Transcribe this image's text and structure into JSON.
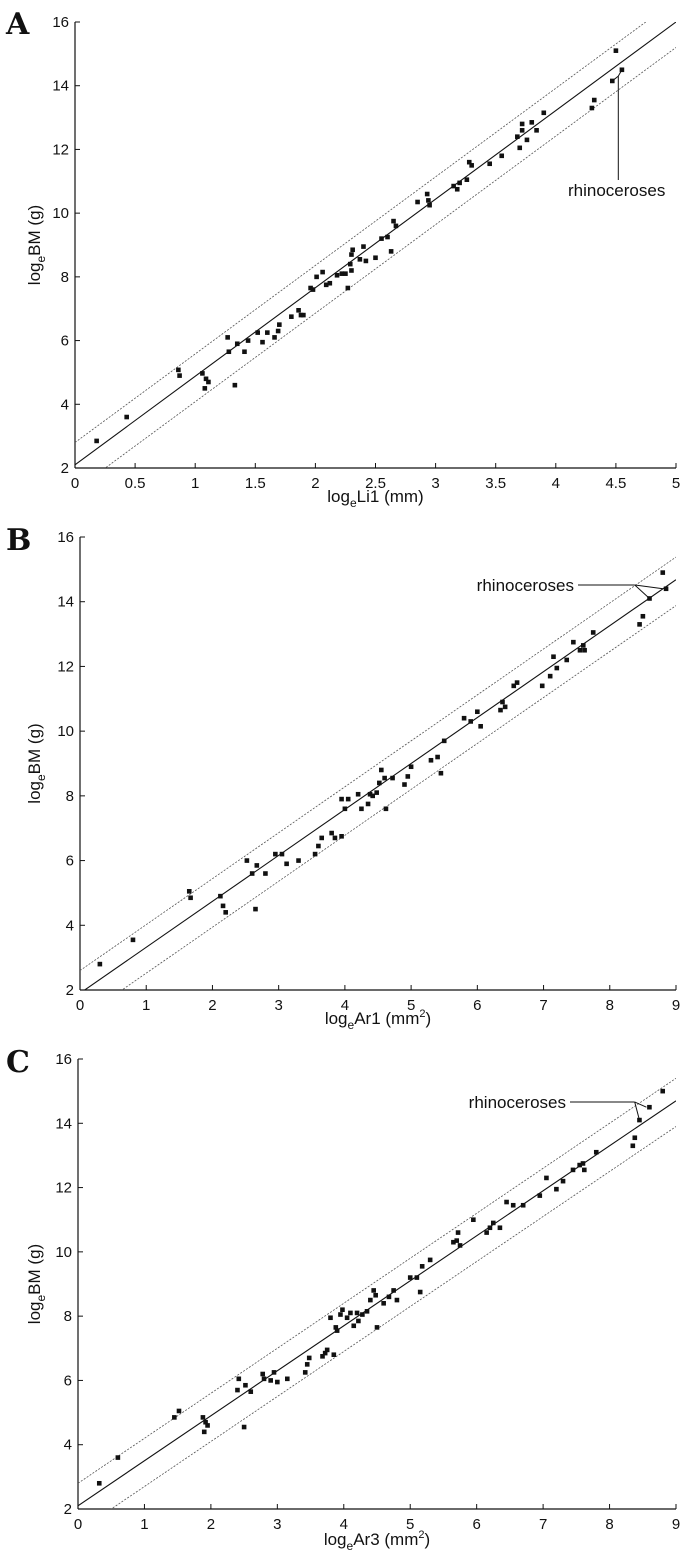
{
  "chart_data": [
    {
      "type": "scatter",
      "panel_label": "A",
      "xlabel": {
        "base": "log",
        "sub": "e",
        "rest": "Li1 (mm)",
        "sup": ""
      },
      "ylabel": {
        "base": "log",
        "sub": "e",
        "rest": "BM (g)"
      },
      "xlim": [
        0,
        5
      ],
      "ylim": [
        2,
        16
      ],
      "xticks": [
        "0",
        "0.5",
        "1",
        "1.5",
        "2",
        "2.5",
        "3",
        "3.5",
        "4",
        "4.5",
        "5"
      ],
      "yticks": [
        "2",
        "4",
        "6",
        "8",
        "10",
        "12",
        "14",
        "16"
      ],
      "annotation": "rhinoceroses",
      "rhino_points": [
        [
          4.5,
          15.1
        ],
        [
          4.55,
          14.5
        ],
        [
          4.47,
          14.15
        ]
      ],
      "fit_line": {
        "intercept": 2.1,
        "slope": 2.78
      },
      "upper_bound": {
        "intercept": 2.8,
        "slope": 2.78
      },
      "lower_bound": {
        "intercept": 1.3,
        "slope": 2.78
      },
      "points": [
        [
          0.18,
          2.85
        ],
        [
          0.43,
          3.6
        ],
        [
          0.86,
          5.08
        ],
        [
          0.87,
          4.9
        ],
        [
          1.06,
          4.97
        ],
        [
          1.08,
          4.5
        ],
        [
          1.09,
          4.8
        ],
        [
          1.11,
          4.7
        ],
        [
          1.27,
          6.1
        ],
        [
          1.28,
          5.65
        ],
        [
          1.33,
          4.6
        ],
        [
          1.35,
          5.9
        ],
        [
          1.41,
          5.65
        ],
        [
          1.44,
          6.0
        ],
        [
          1.52,
          6.25
        ],
        [
          1.56,
          5.95
        ],
        [
          1.6,
          6.25
        ],
        [
          1.66,
          6.1
        ],
        [
          1.69,
          6.3
        ],
        [
          1.7,
          6.5
        ],
        [
          1.8,
          6.75
        ],
        [
          1.86,
          6.95
        ],
        [
          1.88,
          6.8
        ],
        [
          1.9,
          6.8
        ],
        [
          1.96,
          7.65
        ],
        [
          1.98,
          7.6
        ],
        [
          2.01,
          8.0
        ],
        [
          2.06,
          8.15
        ],
        [
          2.09,
          7.75
        ],
        [
          2.12,
          7.8
        ],
        [
          2.18,
          8.05
        ],
        [
          2.22,
          8.1
        ],
        [
          2.25,
          8.1
        ],
        [
          2.27,
          7.65
        ],
        [
          2.29,
          8.4
        ],
        [
          2.3,
          8.7
        ],
        [
          2.31,
          8.85
        ],
        [
          2.3,
          8.2
        ],
        [
          2.37,
          8.55
        ],
        [
          2.4,
          8.95
        ],
        [
          2.42,
          8.5
        ],
        [
          2.5,
          8.6
        ],
        [
          2.55,
          9.2
        ],
        [
          2.6,
          9.25
        ],
        [
          2.63,
          8.8
        ],
        [
          2.65,
          9.75
        ],
        [
          2.67,
          9.6
        ],
        [
          2.85,
          10.35
        ],
        [
          2.93,
          10.6
        ],
        [
          2.94,
          10.4
        ],
        [
          2.95,
          10.25
        ],
        [
          3.15,
          10.85
        ],
        [
          3.18,
          10.75
        ],
        [
          3.2,
          10.95
        ],
        [
          3.26,
          11.05
        ],
        [
          3.28,
          11.6
        ],
        [
          3.3,
          11.5
        ],
        [
          3.45,
          11.55
        ],
        [
          3.55,
          11.8
        ],
        [
          3.68,
          12.4
        ],
        [
          3.7,
          12.05
        ],
        [
          3.72,
          12.8
        ],
        [
          3.72,
          12.6
        ],
        [
          3.76,
          12.3
        ],
        [
          3.8,
          12.85
        ],
        [
          3.84,
          12.6
        ],
        [
          3.9,
          13.15
        ],
        [
          4.3,
          13.3
        ],
        [
          4.32,
          13.55
        ]
      ]
    },
    {
      "type": "scatter",
      "panel_label": "B",
      "xlabel": {
        "base": "log",
        "sub": "e",
        "rest": "Ar1 (mm",
        "sup": "2",
        "close": ")"
      },
      "ylabel": {
        "base": "log",
        "sub": "e",
        "rest": "BM (g)"
      },
      "xlim": [
        0,
        9
      ],
      "ylim": [
        2,
        16
      ],
      "xticks": [
        "0",
        "1",
        "2",
        "3",
        "4",
        "5",
        "6",
        "7",
        "8",
        "9"
      ],
      "yticks": [
        "2",
        "4",
        "6",
        "8",
        "10",
        "12",
        "14",
        "16"
      ],
      "annotation": "rhinoceroses",
      "rhino_points": [
        [
          8.8,
          14.9
        ],
        [
          8.85,
          14.4
        ],
        [
          8.6,
          14.1
        ]
      ],
      "fit_line": {
        "intercept": 1.9,
        "slope": 1.42
      },
      "upper_bound": {
        "intercept": 2.6,
        "slope": 1.42
      },
      "lower_bound": {
        "intercept": 1.1,
        "slope": 1.42
      },
      "points": [
        [
          0.3,
          2.8
        ],
        [
          0.8,
          3.55
        ],
        [
          1.65,
          5.05
        ],
        [
          1.67,
          4.85
        ],
        [
          2.12,
          4.9
        ],
        [
          2.16,
          4.6
        ],
        [
          2.2,
          4.4
        ],
        [
          2.52,
          6.0
        ],
        [
          2.6,
          5.6
        ],
        [
          2.65,
          4.5
        ],
        [
          2.67,
          5.85
        ],
        [
          2.8,
          5.6
        ],
        [
          2.95,
          6.2
        ],
        [
          3.05,
          6.2
        ],
        [
          3.12,
          5.9
        ],
        [
          3.3,
          6.0
        ],
        [
          3.55,
          6.2
        ],
        [
          3.6,
          6.45
        ],
        [
          3.65,
          6.7
        ],
        [
          3.8,
          6.85
        ],
        [
          3.85,
          6.7
        ],
        [
          3.95,
          6.75
        ],
        [
          3.95,
          7.9
        ],
        [
          4.0,
          7.6
        ],
        [
          4.05,
          7.9
        ],
        [
          4.2,
          8.05
        ],
        [
          4.25,
          7.6
        ],
        [
          4.35,
          7.75
        ],
        [
          4.38,
          8.05
        ],
        [
          4.42,
          8.0
        ],
        [
          4.48,
          8.1
        ],
        [
          4.52,
          8.4
        ],
        [
          4.55,
          8.8
        ],
        [
          4.6,
          8.55
        ],
        [
          4.62,
          7.6
        ],
        [
          4.72,
          8.55
        ],
        [
          4.9,
          8.35
        ],
        [
          4.95,
          8.6
        ],
        [
          5.0,
          8.9
        ],
        [
          5.3,
          9.1
        ],
        [
          5.4,
          9.2
        ],
        [
          5.45,
          8.7
        ],
        [
          5.5,
          9.7
        ],
        [
          5.8,
          10.4
        ],
        [
          5.9,
          10.3
        ],
        [
          6.0,
          10.6
        ],
        [
          6.05,
          10.15
        ],
        [
          6.35,
          10.65
        ],
        [
          6.38,
          10.9
        ],
        [
          6.42,
          10.75
        ],
        [
          6.55,
          11.4
        ],
        [
          6.6,
          11.5
        ],
        [
          6.98,
          11.4
        ],
        [
          7.1,
          11.7
        ],
        [
          7.15,
          12.3
        ],
        [
          7.2,
          11.95
        ],
        [
          7.35,
          12.2
        ],
        [
          7.45,
          12.75
        ],
        [
          7.55,
          12.5
        ],
        [
          7.6,
          12.65
        ],
        [
          7.62,
          12.5
        ],
        [
          7.75,
          13.05
        ],
        [
          8.45,
          13.3
        ],
        [
          8.5,
          13.55
        ]
      ]
    },
    {
      "type": "scatter",
      "panel_label": "C",
      "xlabel": {
        "base": "log",
        "sub": "e",
        "rest": "Ar3 (mm",
        "sup": "2",
        "close": ")"
      },
      "ylabel": {
        "base": "log",
        "sub": "e",
        "rest": "BM (g)"
      },
      "xlim": [
        0,
        9
      ],
      "ylim": [
        2,
        16
      ],
      "xticks": [
        "0",
        "1",
        "2",
        "3",
        "4",
        "5",
        "6",
        "7",
        "8",
        "9"
      ],
      "yticks": [
        "2",
        "4",
        "6",
        "8",
        "10",
        "12",
        "14",
        "16"
      ],
      "annotation": "rhinoceroses",
      "rhino_points": [
        [
          8.8,
          15.0
        ],
        [
          8.6,
          14.5
        ],
        [
          8.45,
          14.1
        ]
      ],
      "fit_line": {
        "intercept": 2.1,
        "slope": 1.4
      },
      "upper_bound": {
        "intercept": 2.8,
        "slope": 1.4
      },
      "lower_bound": {
        "intercept": 1.3,
        "slope": 1.4
      },
      "points": [
        [
          0.32,
          2.8
        ],
        [
          0.6,
          3.6
        ],
        [
          1.45,
          4.85
        ],
        [
          1.52,
          5.05
        ],
        [
          1.88,
          4.85
        ],
        [
          1.9,
          4.4
        ],
        [
          1.92,
          4.7
        ],
        [
          1.95,
          4.6
        ],
        [
          2.4,
          5.7
        ],
        [
          2.42,
          6.05
        ],
        [
          2.5,
          4.55
        ],
        [
          2.52,
          5.85
        ],
        [
          2.6,
          5.65
        ],
        [
          2.78,
          6.2
        ],
        [
          2.8,
          6.05
        ],
        [
          2.9,
          6.0
        ],
        [
          2.95,
          6.25
        ],
        [
          3.0,
          5.95
        ],
        [
          3.15,
          6.05
        ],
        [
          3.42,
          6.25
        ],
        [
          3.45,
          6.5
        ],
        [
          3.48,
          6.7
        ],
        [
          3.68,
          6.75
        ],
        [
          3.72,
          6.85
        ],
        [
          3.75,
          6.95
        ],
        [
          3.8,
          7.95
        ],
        [
          3.85,
          6.8
        ],
        [
          3.88,
          7.65
        ],
        [
          3.9,
          7.55
        ],
        [
          3.95,
          8.05
        ],
        [
          3.98,
          8.2
        ],
        [
          4.05,
          7.95
        ],
        [
          4.1,
          8.1
        ],
        [
          4.15,
          7.7
        ],
        [
          4.2,
          8.1
        ],
        [
          4.22,
          7.85
        ],
        [
          4.28,
          8.05
        ],
        [
          4.35,
          8.15
        ],
        [
          4.4,
          8.5
        ],
        [
          4.45,
          8.8
        ],
        [
          4.48,
          8.65
        ],
        [
          4.5,
          7.65
        ],
        [
          4.6,
          8.4
        ],
        [
          4.68,
          8.6
        ],
        [
          4.75,
          8.8
        ],
        [
          4.8,
          8.5
        ],
        [
          5.0,
          9.2
        ],
        [
          5.1,
          9.2
        ],
        [
          5.15,
          8.75
        ],
        [
          5.18,
          9.55
        ],
        [
          5.3,
          9.75
        ],
        [
          5.65,
          10.3
        ],
        [
          5.7,
          10.35
        ],
        [
          5.72,
          10.6
        ],
        [
          5.75,
          10.2
        ],
        [
          5.95,
          11.0
        ],
        [
          6.15,
          10.6
        ],
        [
          6.2,
          10.75
        ],
        [
          6.25,
          10.9
        ],
        [
          6.35,
          10.75
        ],
        [
          6.45,
          11.55
        ],
        [
          6.55,
          11.45
        ],
        [
          6.7,
          11.45
        ],
        [
          6.95,
          11.75
        ],
        [
          7.05,
          12.3
        ],
        [
          7.2,
          11.95
        ],
        [
          7.3,
          12.2
        ],
        [
          7.45,
          12.55
        ],
        [
          7.55,
          12.7
        ],
        [
          7.6,
          12.75
        ],
        [
          7.62,
          12.55
        ],
        [
          7.8,
          13.1
        ],
        [
          8.35,
          13.3
        ],
        [
          8.38,
          13.55
        ]
      ]
    }
  ]
}
